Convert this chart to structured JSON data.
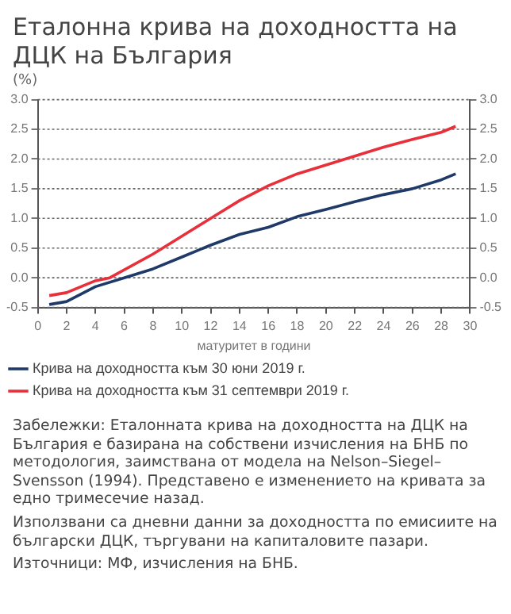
{
  "chart_data": {
    "type": "line",
    "title": "Еталонна крива на доходността на ДЦК на България",
    "ylabel": "(%)",
    "xlabel": "матуритет в години",
    "series": [
      {
        "name": "Крива на доходността към 30 юни 2019 г.",
        "color": "#1f3a68",
        "x": [
          0.8,
          2,
          4,
          6,
          8,
          10,
          12,
          14,
          16,
          18,
          20,
          22,
          24,
          26,
          28,
          29
        ],
        "values": [
          -0.45,
          -0.4,
          -0.15,
          0.0,
          0.15,
          0.35,
          0.55,
          0.73,
          0.85,
          1.03,
          1.15,
          1.28,
          1.4,
          1.5,
          1.65,
          1.75
        ]
      },
      {
        "name": "Крива на доходността към 31 септември 2019 г.",
        "color": "#e8303a",
        "x": [
          0.8,
          2,
          4,
          5,
          8,
          10,
          12,
          14,
          16,
          18,
          20,
          22,
          24,
          26,
          28,
          29
        ],
        "values": [
          -0.3,
          -0.25,
          -0.05,
          0.0,
          0.4,
          0.7,
          1.0,
          1.3,
          1.55,
          1.75,
          1.9,
          2.05,
          2.2,
          2.33,
          2.45,
          2.55
        ]
      }
    ],
    "xlim": [
      0,
      30
    ],
    "xticks": [
      0,
      2,
      4,
      6,
      8,
      10,
      12,
      14,
      16,
      18,
      20,
      22,
      24,
      26,
      28,
      30
    ],
    "ylim": [
      -0.5,
      3
    ],
    "yticks": [
      {
        "value": -0.5,
        "label": "-0.5"
      },
      {
        "value": 0,
        "label": "0.0"
      },
      {
        "value": 0.5,
        "label": "0.5"
      },
      {
        "value": 1,
        "label": "1.0"
      },
      {
        "value": 1.5,
        "label": "1.5"
      },
      {
        "value": 2,
        "label": "2.0"
      },
      {
        "value": 2.5,
        "label": "2.5"
      },
      {
        "value": 3,
        "label": "3.0"
      }
    ],
    "y2lim": [
      -0.5,
      3
    ],
    "y2ticks": [
      {
        "value": -0.5,
        "label": "-0.5"
      },
      {
        "value": 0,
        "label": "0.0"
      },
      {
        "value": 0.5,
        "label": "0.5"
      },
      {
        "value": 1,
        "label": "1.0"
      },
      {
        "value": 1.5,
        "label": "1.5"
      },
      {
        "value": 2,
        "label": "2.0"
      },
      {
        "value": 2.5,
        "label": "2.5"
      },
      {
        "value": 3,
        "label": "3.0"
      }
    ],
    "grid": "y",
    "legend": "bottom",
    "marker": "none",
    "line_style": "solid",
    "annotations": [
      "Забележки: Еталонната крива на доходността на ДЦК на България е базирана на собствени изчисления на БНБ по методология, заимствана от модела на Nelson–Siegel–Svensson (1994). Представено е изменението на кривата за едно тримесечие назад.",
      "Използвани са дневни данни за доходността по емисиите на български ДЦК, търгувани на капиталовите пазари.",
      "Източници: МФ, изчисления на БНБ."
    ]
  }
}
